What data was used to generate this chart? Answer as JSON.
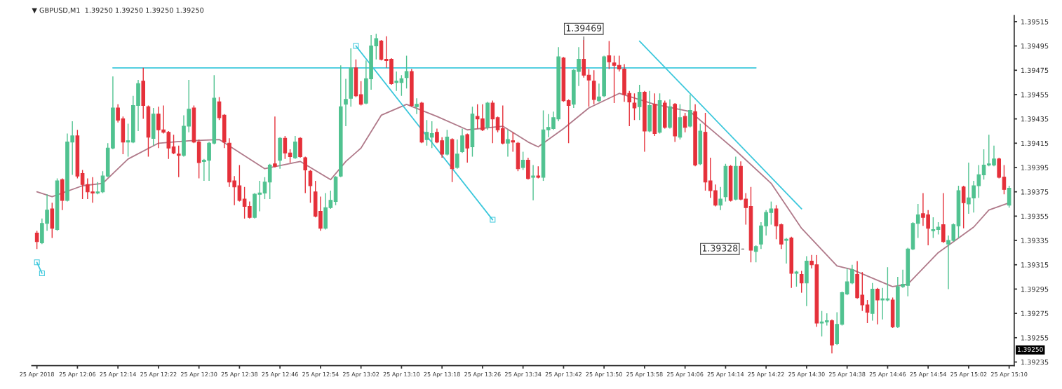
{
  "chart_data": {
    "type": "candlestick",
    "title": "▼ GBPUSD,M1  1.39250 1.39250 1.39250 1.39250",
    "x": [
      "2018-04-25T11:58",
      "2018-04-25T11:59",
      "2018-04-25T12:00",
      "2018-04-25T12:01",
      "2018-04-25T12:02",
      "2018-04-25T12:03",
      "2018-04-25T12:04",
      "2018-04-25T12:05",
      "2018-04-25T12:06",
      "2018-04-25T12:07",
      "2018-04-25T12:08",
      "2018-04-25T12:09",
      "2018-04-25T12:10",
      "2018-04-25T12:11",
      "2018-04-25T12:12",
      "2018-04-25T12:13",
      "2018-04-25T12:14",
      "2018-04-25T12:15",
      "2018-04-25T12:16",
      "2018-04-25T12:17",
      "2018-04-25T12:18",
      "2018-04-25T12:19",
      "2018-04-25T12:20",
      "2018-04-25T12:21",
      "2018-04-25T12:22",
      "2018-04-25T12:23",
      "2018-04-25T12:24",
      "2018-04-25T12:25",
      "2018-04-25T12:26",
      "2018-04-25T12:27",
      "2018-04-25T12:28",
      "2018-04-25T12:29",
      "2018-04-25T12:30",
      "2018-04-25T12:31",
      "2018-04-25T12:32",
      "2018-04-25T12:33",
      "2018-04-25T12:34",
      "2018-04-25T12:35",
      "2018-04-25T12:36",
      "2018-04-25T12:37",
      "2018-04-25T12:38",
      "2018-04-25T12:39",
      "2018-04-25T12:40",
      "2018-04-25T12:41",
      "2018-04-25T12:42",
      "2018-04-25T12:43",
      "2018-04-25T12:44",
      "2018-04-25T12:45",
      "2018-04-25T12:46",
      "2018-04-25T12:47",
      "2018-04-25T12:48",
      "2018-04-25T12:49",
      "2018-04-25T12:50",
      "2018-04-25T12:51",
      "2018-04-25T12:52",
      "2018-04-25T12:53",
      "2018-04-25T12:54",
      "2018-04-25T12:55",
      "2018-04-25T12:56",
      "2018-04-25T12:57",
      "2018-04-25T12:58",
      "2018-04-25T12:59",
      "2018-04-25T13:00",
      "2018-04-25T13:01",
      "2018-04-25T13:02",
      "2018-04-25T13:03",
      "2018-04-25T13:04",
      "2018-04-25T13:05",
      "2018-04-25T13:06",
      "2018-04-25T13:07",
      "2018-04-25T13:08",
      "2018-04-25T13:09",
      "2018-04-25T13:10",
      "2018-04-25T13:11",
      "2018-04-25T13:12",
      "2018-04-25T13:13",
      "2018-04-25T13:14",
      "2018-04-25T13:15",
      "2018-04-25T13:16",
      "2018-04-25T13:17",
      "2018-04-25T13:18",
      "2018-04-25T13:19",
      "2018-04-25T13:20",
      "2018-04-25T13:21",
      "2018-04-25T13:22",
      "2018-04-25T13:23",
      "2018-04-25T13:24",
      "2018-04-25T13:25",
      "2018-04-25T13:26",
      "2018-04-25T13:27",
      "2018-04-25T13:28",
      "2018-04-25T13:29",
      "2018-04-25T13:30",
      "2018-04-25T13:31",
      "2018-04-25T13:32",
      "2018-04-25T13:33",
      "2018-04-25T13:34",
      "2018-04-25T13:35",
      "2018-04-25T13:36",
      "2018-04-25T13:37",
      "2018-04-25T13:38",
      "2018-04-25T13:39",
      "2018-04-25T13:40",
      "2018-04-25T13:41",
      "2018-04-25T13:42",
      "2018-04-25T13:43",
      "2018-04-25T13:44",
      "2018-04-25T13:45",
      "2018-04-25T13:46",
      "2018-04-25T13:47",
      "2018-04-25T13:48",
      "2018-04-25T13:49",
      "2018-04-25T13:50",
      "2018-04-25T13:51",
      "2018-04-25T13:52",
      "2018-04-25T13:53",
      "2018-04-25T13:54",
      "2018-04-25T13:55",
      "2018-04-25T13:56",
      "2018-04-25T13:57",
      "2018-04-25T13:58",
      "2018-04-25T13:59",
      "2018-04-25T14:00",
      "2018-04-25T14:01",
      "2018-04-25T14:02",
      "2018-04-25T14:03",
      "2018-04-25T14:04",
      "2018-04-25T14:05",
      "2018-04-25T14:06",
      "2018-04-25T14:07",
      "2018-04-25T14:08",
      "2018-04-25T14:09",
      "2018-04-25T14:10",
      "2018-04-25T14:11",
      "2018-04-25T14:12",
      "2018-04-25T14:13",
      "2018-04-25T14:14",
      "2018-04-25T14:15",
      "2018-04-25T14:16",
      "2018-04-25T14:17",
      "2018-04-25T14:18",
      "2018-04-25T14:19",
      "2018-04-25T14:20",
      "2018-04-25T14:21",
      "2018-04-25T14:22",
      "2018-04-25T14:23",
      "2018-04-25T14:24",
      "2018-04-25T14:25",
      "2018-04-25T14:26",
      "2018-04-25T14:27",
      "2018-04-25T14:28",
      "2018-04-25T14:29",
      "2018-04-25T14:30",
      "2018-04-25T14:31",
      "2018-04-25T14:32",
      "2018-04-25T14:33",
      "2018-04-25T14:34",
      "2018-04-25T14:35",
      "2018-04-25T14:36",
      "2018-04-25T14:37",
      "2018-04-25T14:38",
      "2018-04-25T14:39",
      "2018-04-25T14:40",
      "2018-04-25T14:41",
      "2018-04-25T14:42",
      "2018-04-25T14:43",
      "2018-04-25T14:44",
      "2018-04-25T14:45",
      "2018-04-25T14:46",
      "2018-04-25T14:47",
      "2018-04-25T14:48",
      "2018-04-25T14:49",
      "2018-04-25T14:50",
      "2018-04-25T14:51",
      "2018-04-25T14:52",
      "2018-04-25T14:53",
      "2018-04-25T14:54",
      "2018-04-25T14:55",
      "2018-04-25T14:56",
      "2018-04-25T14:57",
      "2018-04-25T14:58",
      "2018-04-25T14:59",
      "2018-04-25T15:00",
      "2018-04-25T15:01",
      "2018-04-25T15:02",
      "2018-04-25T15:03",
      "2018-04-25T15:04",
      "2018-04-25T15:05",
      "2018-04-25T15:06",
      "2018-04-25T15:07",
      "2018-04-25T15:08",
      "2018-04-25T15:09",
      "2018-04-25T15:10"
    ],
    "ohlc": [
      [
        1.39341,
        1.39343,
        1.39328,
        1.39334
      ],
      [
        1.39333,
        1.39353,
        1.39332,
        1.39349
      ],
      [
        1.39349,
        1.39373,
        1.39343,
        1.3936
      ],
      [
        1.39361,
        1.39366,
        1.39337,
        1.39345
      ],
      [
        1.39344,
        1.39386,
        1.39343,
        1.39384
      ],
      [
        1.39385,
        1.39386,
        1.3936,
        1.39368
      ],
      [
        1.39368,
        1.39423,
        1.39367,
        1.39416
      ],
      [
        1.39416,
        1.39433,
        1.39389,
        1.39421
      ],
      [
        1.39421,
        1.39426,
        1.39386,
        1.39388
      ],
      [
        1.3939,
        1.39393,
        1.39369,
        1.39381
      ],
      [
        1.39381,
        1.39386,
        1.39369,
        1.39375
      ],
      [
        1.39375,
        1.39387,
        1.39366,
        1.39374
      ],
      [
        1.39374,
        1.39383,
        1.39373,
        1.39375
      ],
      [
        1.39375,
        1.39392,
        1.39374,
        1.39388
      ],
      [
        1.39388,
        1.39415,
        1.39387,
        1.39411
      ],
      [
        1.39411,
        1.3947,
        1.3941,
        1.39444
      ],
      [
        1.39444,
        1.39447,
        1.39432,
        1.39434
      ],
      [
        1.39435,
        1.39437,
        1.39406,
        1.39416
      ],
      [
        1.39416,
        1.39431,
        1.39404,
        1.39417
      ],
      [
        1.39416,
        1.39454,
        1.39415,
        1.39446
      ],
      [
        1.39446,
        1.39467,
        1.39425,
        1.39464
      ],
      [
        1.39466,
        1.39477,
        1.39435,
        1.39446
      ],
      [
        1.39445,
        1.39446,
        1.39404,
        1.3942
      ],
      [
        1.39419,
        1.39444,
        1.39413,
        1.39439
      ],
      [
        1.39439,
        1.39445,
        1.39411,
        1.39426
      ],
      [
        1.39426,
        1.39446,
        1.39423,
        1.39424
      ],
      [
        1.39424,
        1.39425,
        1.39402,
        1.39411
      ],
      [
        1.39412,
        1.39422,
        1.39406,
        1.39407
      ],
      [
        1.39406,
        1.39413,
        1.39387,
        1.39405
      ],
      [
        1.39405,
        1.39438,
        1.39404,
        1.39429
      ],
      [
        1.39429,
        1.39467,
        1.39424,
        1.39443
      ],
      [
        1.39444,
        1.39446,
        1.39415,
        1.39416
      ],
      [
        1.39416,
        1.39418,
        1.39386,
        1.39399
      ],
      [
        1.394,
        1.39402,
        1.39384,
        1.39401
      ],
      [
        1.39401,
        1.39416,
        1.39384,
        1.39415
      ],
      [
        1.39415,
        1.39471,
        1.39414,
        1.39452
      ],
      [
        1.39449,
        1.39453,
        1.39434,
        1.39436
      ],
      [
        1.39438,
        1.39439,
        1.39411,
        1.39416
      ],
      [
        1.39415,
        1.39419,
        1.39379,
        1.39383
      ],
      [
        1.39384,
        1.39388,
        1.39364,
        1.39379
      ],
      [
        1.3938,
        1.39397,
        1.39367,
        1.39368
      ],
      [
        1.39369,
        1.39379,
        1.39353,
        1.39363
      ],
      [
        1.39363,
        1.39367,
        1.39353,
        1.39354
      ],
      [
        1.39354,
        1.39374,
        1.39353,
        1.39373
      ],
      [
        1.39373,
        1.39384,
        1.39359,
        1.39374
      ],
      [
        1.39374,
        1.39387,
        1.39369,
        1.39383
      ],
      [
        1.39383,
        1.39398,
        1.39369,
        1.39397
      ],
      [
        1.39398,
        1.39437,
        1.39395,
        1.39396
      ],
      [
        1.39401,
        1.3942,
        1.39394,
        1.39419
      ],
      [
        1.39419,
        1.39421,
        1.39402,
        1.39407
      ],
      [
        1.39407,
        1.3941,
        1.39399,
        1.39404
      ],
      [
        1.39403,
        1.39421,
        1.39402,
        1.39416
      ],
      [
        1.39419,
        1.3942,
        1.39403,
        1.39404
      ],
      [
        1.39403,
        1.39404,
        1.39374,
        1.39393
      ],
      [
        1.39392,
        1.39393,
        1.39366,
        1.3938
      ],
      [
        1.39375,
        1.39384,
        1.39354,
        1.39355
      ],
      [
        1.39359,
        1.39371,
        1.39343,
        1.39345
      ],
      [
        1.39345,
        1.39374,
        1.39344,
        1.39362
      ],
      [
        1.39362,
        1.39376,
        1.39361,
        1.39368
      ],
      [
        1.39367,
        1.39388,
        1.39364,
        1.39387
      ],
      [
        1.39388,
        1.39479,
        1.39387,
        1.39445
      ],
      [
        1.39447,
        1.39468,
        1.39429,
        1.39451
      ],
      [
        1.39452,
        1.39493,
        1.39445,
        1.39477
      ],
      [
        1.39477,
        1.39484,
        1.39453,
        1.39454
      ],
      [
        1.39455,
        1.39466,
        1.39446,
        1.39447
      ],
      [
        1.39448,
        1.39483,
        1.39447,
        1.39468
      ],
      [
        1.39468,
        1.39504,
        1.39459,
        1.39495
      ],
      [
        1.39495,
        1.39505,
        1.39484,
        1.39501
      ],
      [
        1.39499,
        1.395,
        1.39483,
        1.39484
      ],
      [
        1.39484,
        1.39503,
        1.39477,
        1.39483
      ],
      [
        1.39484,
        1.39485,
        1.39463,
        1.39464
      ],
      [
        1.39465,
        1.39474,
        1.39458,
        1.39466
      ],
      [
        1.39465,
        1.39471,
        1.39454,
        1.39468
      ],
      [
        1.39469,
        1.39487,
        1.3946,
        1.39474
      ],
      [
        1.39474,
        1.39476,
        1.39445,
        1.39446
      ],
      [
        1.39445,
        1.39452,
        1.39439,
        1.39447
      ],
      [
        1.39448,
        1.39449,
        1.39415,
        1.39416
      ],
      [
        1.39418,
        1.39434,
        1.39413,
        1.39424
      ],
      [
        1.3942,
        1.39433,
        1.39411,
        1.39423
      ],
      [
        1.39424,
        1.39427,
        1.39415,
        1.39416
      ],
      [
        1.39417,
        1.3942,
        1.39403,
        1.39406
      ],
      [
        1.39406,
        1.39426,
        1.39405,
        1.3942
      ],
      [
        1.39418,
        1.39419,
        1.39383,
        1.39394
      ],
      [
        1.39395,
        1.39418,
        1.39394,
        1.39406
      ],
      [
        1.39408,
        1.39427,
        1.39407,
        1.39421
      ],
      [
        1.39422,
        1.39423,
        1.39399,
        1.39411
      ],
      [
        1.39412,
        1.39445,
        1.39404,
        1.39439
      ],
      [
        1.39437,
        1.39447,
        1.39427,
        1.39435
      ],
      [
        1.39435,
        1.39447,
        1.39425,
        1.39426
      ],
      [
        1.39428,
        1.39449,
        1.39426,
        1.39448
      ],
      [
        1.39448,
        1.3945,
        1.39415,
        1.39435
      ],
      [
        1.39436,
        1.39437,
        1.39424,
        1.39426
      ],
      [
        1.39427,
        1.39446,
        1.39414,
        1.39415
      ],
      [
        1.39415,
        1.39426,
        1.39404,
        1.39418
      ],
      [
        1.39417,
        1.39424,
        1.39408,
        1.39416
      ],
      [
        1.39415,
        1.39416,
        1.39392,
        1.39394
      ],
      [
        1.39395,
        1.39408,
        1.39393,
        1.39401
      ],
      [
        1.39401,
        1.39403,
        1.39385,
        1.39386
      ],
      [
        1.39387,
        1.39397,
        1.39368,
        1.39388
      ],
      [
        1.39388,
        1.39396,
        1.39386,
        1.39387
      ],
      [
        1.39387,
        1.39442,
        1.39384,
        1.39426
      ],
      [
        1.39426,
        1.39439,
        1.3942,
        1.39428
      ],
      [
        1.39427,
        1.39441,
        1.39426,
        1.39436
      ],
      [
        1.39435,
        1.39494,
        1.39433,
        1.39486
      ],
      [
        1.39485,
        1.39486,
        1.39449,
        1.3945
      ],
      [
        1.3945,
        1.39451,
        1.39415,
        1.39446
      ],
      [
        1.39447,
        1.39476,
        1.39444,
        1.39475
      ],
      [
        1.39474,
        1.39494,
        1.39462,
        1.39484
      ],
      [
        1.39484,
        1.395,
        1.39469,
        1.39471
      ],
      [
        1.39471,
        1.39476,
        1.39445,
        1.39467
      ],
      [
        1.39466,
        1.39475,
        1.39447,
        1.39451
      ],
      [
        1.3945,
        1.39464,
        1.39449,
        1.39453
      ],
      [
        1.39454,
        1.39487,
        1.39453,
        1.39486
      ],
      [
        1.39487,
        1.39499,
        1.39476,
        1.39482
      ],
      [
        1.39481,
        1.39487,
        1.39448,
        1.39479
      ],
      [
        1.39479,
        1.39487,
        1.39474,
        1.39476
      ],
      [
        1.39476,
        1.3948,
        1.39449,
        1.39455
      ],
      [
        1.39456,
        1.39458,
        1.39429,
        1.39449
      ],
      [
        1.39448,
        1.39456,
        1.39434,
        1.39444
      ],
      [
        1.39445,
        1.39463,
        1.39434,
        1.39457
      ],
      [
        1.39457,
        1.39458,
        1.39408,
        1.39425
      ],
      [
        1.39425,
        1.39458,
        1.39424,
        1.39446
      ],
      [
        1.39447,
        1.39456,
        1.39421,
        1.39423
      ],
      [
        1.39424,
        1.39456,
        1.39423,
        1.3945
      ],
      [
        1.39448,
        1.3945,
        1.39427,
        1.39428
      ],
      [
        1.39428,
        1.39451,
        1.39427,
        1.39445
      ],
      [
        1.39447,
        1.39448,
        1.39416,
        1.39421
      ],
      [
        1.3942,
        1.39447,
        1.39418,
        1.39436
      ],
      [
        1.39437,
        1.3944,
        1.39424,
        1.39428
      ],
      [
        1.39429,
        1.39455,
        1.39428,
        1.39442
      ],
      [
        1.39441,
        1.39447,
        1.39396,
        1.39397
      ],
      [
        1.39398,
        1.39431,
        1.39397,
        1.39425
      ],
      [
        1.39424,
        1.3944,
        1.39376,
        1.39383
      ],
      [
        1.39384,
        1.39403,
        1.3937,
        1.39376
      ],
      [
        1.39376,
        1.39381,
        1.39363,
        1.39364
      ],
      [
        1.39364,
        1.39379,
        1.3936,
        1.39369
      ],
      [
        1.39371,
        1.39398,
        1.39367,
        1.39396
      ],
      [
        1.39396,
        1.39397,
        1.39367,
        1.39368
      ],
      [
        1.39369,
        1.39404,
        1.39368,
        1.39396
      ],
      [
        1.39396,
        1.394,
        1.39368,
        1.39369
      ],
      [
        1.39369,
        1.39374,
        1.39348,
        1.39362
      ],
      [
        1.39363,
        1.39379,
        1.39317,
        1.39327
      ],
      [
        1.39326,
        1.39331,
        1.39317,
        1.3933
      ],
      [
        1.39332,
        1.3935,
        1.39328,
        1.39347
      ],
      [
        1.39347,
        1.3936,
        1.39339,
        1.39358
      ],
      [
        1.39358,
        1.39367,
        1.39348,
        1.39361
      ],
      [
        1.39361,
        1.39364,
        1.39336,
        1.39347
      ],
      [
        1.39348,
        1.39349,
        1.39328,
        1.39332
      ],
      [
        1.39335,
        1.39337,
        1.39316,
        1.39336
      ],
      [
        1.39337,
        1.39338,
        1.39296,
        1.39308
      ],
      [
        1.39308,
        1.3931,
        1.39297,
        1.39309
      ],
      [
        1.39307,
        1.3931,
        1.39292,
        1.393
      ],
      [
        1.393,
        1.39322,
        1.39281,
        1.39318
      ],
      [
        1.39318,
        1.39323,
        1.39312,
        1.39315
      ],
      [
        1.39315,
        1.39323,
        1.39264,
        1.39267
      ],
      [
        1.39267,
        1.39277,
        1.39256,
        1.39268
      ],
      [
        1.39268,
        1.39275,
        1.39265,
        1.39269
      ],
      [
        1.39269,
        1.3927,
        1.39242,
        1.39249
      ],
      [
        1.3925,
        1.39276,
        1.39249,
        1.39266
      ],
      [
        1.39266,
        1.39293,
        1.39265,
        1.39292
      ],
      [
        1.39291,
        1.39312,
        1.3929,
        1.39301
      ],
      [
        1.393,
        1.39315,
        1.39299,
        1.39311
      ],
      [
        1.39307,
        1.39318,
        1.39287,
        1.39288
      ],
      [
        1.3929,
        1.39309,
        1.39277,
        1.39282
      ],
      [
        1.39282,
        1.39286,
        1.39267,
        1.39276
      ],
      [
        1.39275,
        1.393,
        1.39269,
        1.39295
      ],
      [
        1.39295,
        1.39296,
        1.39266,
        1.39286
      ],
      [
        1.39286,
        1.39296,
        1.3927,
        1.39287
      ],
      [
        1.39286,
        1.39313,
        1.39285,
        1.39287
      ],
      [
        1.39286,
        1.39288,
        1.39263,
        1.39264
      ],
      [
        1.39264,
        1.39305,
        1.39263,
        1.39297
      ],
      [
        1.39297,
        1.39311,
        1.39296,
        1.39299
      ],
      [
        1.39298,
        1.39329,
        1.39289,
        1.39328
      ],
      [
        1.39328,
        1.3935,
        1.39327,
        1.39349
      ],
      [
        1.39349,
        1.39365,
        1.39337,
        1.39356
      ],
      [
        1.39357,
        1.39374,
        1.39347,
        1.39354
      ],
      [
        1.39356,
        1.3936,
        1.39331,
        1.39345
      ],
      [
        1.39343,
        1.39354,
        1.39337,
        1.39344
      ],
      [
        1.39344,
        1.3935,
        1.3934,
        1.39346
      ],
      [
        1.39348,
        1.39374,
        1.39333,
        1.39334
      ],
      [
        1.39332,
        1.39339,
        1.39295,
        1.39335
      ],
      [
        1.39335,
        1.39349,
        1.39334,
        1.39348
      ],
      [
        1.39347,
        1.3938,
        1.39337,
        1.39376
      ],
      [
        1.39379,
        1.3938,
        1.39345,
        1.39366
      ],
      [
        1.39365,
        1.39399,
        1.39357,
        1.3937
      ],
      [
        1.3937,
        1.39384,
        1.39358,
        1.3938
      ],
      [
        1.3938,
        1.39397,
        1.3937,
        1.39389
      ],
      [
        1.39389,
        1.3941,
        1.39385,
        1.39397
      ],
      [
        1.39397,
        1.39422,
        1.39396,
        1.39398
      ],
      [
        1.39397,
        1.39413,
        1.39396,
        1.39402
      ],
      [
        1.39402,
        1.39403,
        1.39386,
        1.39387
      ],
      [
        1.39387,
        1.39397,
        1.39373,
        1.39377
      ],
      [
        1.39364,
        1.3938,
        1.39362,
        1.39378
      ]
    ],
    "colors": [
      "#e5303a",
      "#50c290",
      "#50c290",
      "#e5303a",
      "#50c290",
      "#e5303a",
      "#50c290",
      "#50c290",
      "#e5303a",
      "#e5303a",
      "#e5303a",
      "#e5303a",
      "#50c290",
      "#50c290",
      "#50c290",
      "#50c290",
      "#e5303a",
      "#e5303a",
      "#50c290",
      "#50c290",
      "#50c290",
      "#e5303a",
      "#e5303a",
      "#50c290",
      "#e5303a",
      "#e5303a",
      "#e5303a",
      "#e5303a",
      "#e5303a",
      "#50c290",
      "#50c290",
      "#e5303a",
      "#e5303a",
      "#50c290",
      "#50c290",
      "#50c290",
      "#e5303a",
      "#e5303a",
      "#e5303a",
      "#e5303a",
      "#e5303a",
      "#e5303a",
      "#e5303a",
      "#50c290",
      "#50c290",
      "#50c290",
      "#50c290",
      "#e5303a",
      "#50c290",
      "#e5303a",
      "#e5303a",
      "#50c290",
      "#e5303a",
      "#e5303a",
      "#e5303a",
      "#e5303a",
      "#e5303a",
      "#50c290",
      "#50c290",
      "#50c290",
      "#50c290",
      "#50c290",
      "#50c290",
      "#e5303a",
      "#e5303a",
      "#50c290",
      "#50c290",
      "#50c290",
      "#e5303a",
      "#e5303a",
      "#e5303a",
      "#50c290",
      "#50c290",
      "#50c290",
      "#e5303a",
      "#50c290",
      "#e5303a",
      "#50c290",
      "#50c290",
      "#e5303a",
      "#e5303a",
      "#50c290",
      "#e5303a",
      "#50c290",
      "#50c290",
      "#e5303a",
      "#50c290",
      "#e5303a",
      "#e5303a",
      "#50c290",
      "#e5303a",
      "#e5303a",
      "#e5303a",
      "#50c290",
      "#e5303a",
      "#e5303a",
      "#50c290",
      "#e5303a",
      "#50c290",
      "#e5303a",
      "#50c290",
      "#50c290",
      "#50c290",
      "#50c290",
      "#e5303a",
      "#e5303a",
      "#50c290",
      "#50c290",
      "#e5303a",
      "#e5303a",
      "#e5303a",
      "#50c290",
      "#50c290",
      "#e5303a",
      "#e5303a",
      "#e5303a",
      "#e5303a",
      "#e5303a",
      "#e5303a",
      "#50c290",
      "#e5303a",
      "#50c290",
      "#e5303a",
      "#50c290",
      "#e5303a",
      "#50c290",
      "#e5303a",
      "#50c290",
      "#e5303a",
      "#50c290",
      "#e5303a",
      "#50c290",
      "#e5303a",
      "#e5303a",
      "#e5303a",
      "#50c290",
      "#50c290",
      "#e5303a",
      "#50c290",
      "#e5303a",
      "#e5303a",
      "#e5303a",
      "#50c290",
      "#50c290",
      "#50c290",
      "#50c290",
      "#e5303a",
      "#e5303a",
      "#50c290",
      "#e5303a",
      "#50c290",
      "#e5303a",
      "#50c290",
      "#e5303a",
      "#e5303a",
      "#50c290",
      "#50c290",
      "#e5303a",
      "#50c290",
      "#50c290",
      "#50c290",
      "#50c290",
      "#e5303a",
      "#e5303a",
      "#e5303a",
      "#50c290",
      "#e5303a",
      "#50c290",
      "#50c290",
      "#e5303a",
      "#50c290",
      "#50c290",
      "#50c290",
      "#50c290",
      "#50c290",
      "#e5303a",
      "#e5303a",
      "#50c290",
      "#50c290",
      "#e5303a",
      "#50c290",
      "#50c290",
      "#50c290",
      "#e5303a",
      "#50c290",
      "#50c290",
      "#50c290",
      "#50c290",
      "#50c290",
      "#50c290",
      "#e5303a",
      "#e5303a",
      "#50c290"
    ],
    "series": [
      {
        "type": "line",
        "color": "#b07a8a",
        "marker": "none",
        "line_style": "solid",
        "x": [
          "2018-04-25T11:58",
          "2018-04-25T12:01",
          "2018-04-25T12:07",
          "2018-04-25T12:11",
          "2018-04-25T12:16",
          "2018-04-25T12:22",
          "2018-04-25T12:28",
          "2018-04-25T12:34",
          "2018-04-25T12:43",
          "2018-04-25T12:50",
          "2018-04-25T12:56",
          "2018-04-25T12:59",
          "2018-04-25T13:02",
          "2018-04-25T13:06",
          "2018-04-25T13:11",
          "2018-04-25T13:17",
          "2018-04-25T13:23",
          "2018-04-25T13:30",
          "2018-04-25T13:35",
          "2018-04-25T13:37",
          "2018-04-25T13:42",
          "2018-04-25T13:47",
          "2018-04-25T13:53",
          "2018-04-25T14:00",
          "2018-04-25T14:07",
          "2018-04-25T14:16",
          "2018-04-25T14:23",
          "2018-04-25T14:29",
          "2018-04-25T14:36",
          "2018-04-25T14:39",
          "2018-04-25T14:47",
          "2018-04-25T14:50",
          "2018-04-25T14:56",
          "2018-04-25T15:03",
          "2018-04-25T15:06",
          "2018-04-25T15:10"
        ],
        "values": [
          1.39375,
          1.39371,
          1.3938,
          1.39382,
          1.39402,
          1.39415,
          1.39417,
          1.39418,
          1.39394,
          1.394,
          1.39385,
          1.394,
          1.39411,
          1.39438,
          1.39447,
          1.39437,
          1.39426,
          1.39429,
          1.39416,
          1.39412,
          1.39427,
          1.39444,
          1.39456,
          1.39447,
          1.39441,
          1.39409,
          1.39382,
          1.39345,
          1.39314,
          1.39311,
          1.39297,
          1.39299,
          1.39325,
          1.39346,
          1.3936,
          1.39366
        ]
      },
      {
        "type": "line",
        "color": "#3cc8dc",
        "marker": "none",
        "line_style": "solid",
        "x": [
          "2018-04-25T12:13",
          "2018-04-25T14:20"
        ],
        "values": [
          1.39477,
          1.39477
        ]
      },
      {
        "type": "line",
        "color": "#3cc8dc",
        "marker": "square",
        "line_style": "solid",
        "x": [
          "2018-04-25T11:58",
          "2018-04-25T11:59"
        ],
        "values": [
          1.39317,
          1.39308
        ]
      },
      {
        "type": "line",
        "color": "#3cc8dc",
        "marker": "square",
        "line_style": "solid",
        "x": [
          "2018-04-25T13:01",
          "2018-04-25T13:28"
        ],
        "values": [
          1.39495,
          1.39352
        ]
      },
      {
        "type": "line",
        "color": "#3cc8dc",
        "marker": "none",
        "line_style": "solid",
        "x": [
          "2018-04-25T13:57",
          "2018-04-25T14:29"
        ],
        "values": [
          1.39499,
          1.39361
        ]
      }
    ],
    "annotations": [
      {
        "text": "1.39469",
        "x": "2018-04-25T13:46",
        "y": 1.39469
      },
      {
        "text": "1.39328",
        "x": "2018-04-25T14:18",
        "y": 1.39328
      },
      "1.39250"
    ],
    "xlim": [
      "2018-04-25T11:57",
      "2018-04-25T15:11"
    ],
    "xticks": [
      {
        "value": "2018-04-25T11:58",
        "label": "25 Apr 2018"
      },
      {
        "value": "2018-04-25T12:06",
        "label": "25 Apr 12:06"
      },
      {
        "value": "2018-04-25T12:14",
        "label": "25 Apr 12:14"
      },
      {
        "value": "2018-04-25T12:22",
        "label": "25 Apr 12:22"
      },
      {
        "value": "2018-04-25T12:30",
        "label": "25 Apr 12:30"
      },
      {
        "value": "2018-04-25T12:38",
        "label": "25 Apr 12:38"
      },
      {
        "value": "2018-04-25T12:46",
        "label": "25 Apr 12:46"
      },
      {
        "value": "2018-04-25T12:54",
        "label": "25 Apr 12:54"
      },
      {
        "value": "2018-04-25T13:02",
        "label": "25 Apr 13:02"
      },
      {
        "value": "2018-04-25T13:10",
        "label": "25 Apr 13:10"
      },
      {
        "value": "2018-04-25T13:18",
        "label": "25 Apr 13:18"
      },
      {
        "value": "2018-04-25T13:26",
        "label": "25 Apr 13:26"
      },
      {
        "value": "2018-04-25T13:34",
        "label": "25 Apr 13:34"
      },
      {
        "value": "2018-04-25T13:42",
        "label": "25 Apr 13:42"
      },
      {
        "value": "2018-04-25T13:50",
        "label": "25 Apr 13:50"
      },
      {
        "value": "2018-04-25T13:58",
        "label": "25 Apr 13:58"
      },
      {
        "value": "2018-04-25T14:06",
        "label": "25 Apr 14:06"
      },
      {
        "value": "2018-04-25T14:14",
        "label": "25 Apr 14:14"
      },
      {
        "value": "2018-04-25T14:22",
        "label": "25 Apr 14:22"
      },
      {
        "value": "2018-04-25T14:30",
        "label": "25 Apr 14:30"
      },
      {
        "value": "2018-04-25T14:38",
        "label": "25 Apr 14:38"
      },
      {
        "value": "2018-04-25T14:46",
        "label": "25 Apr 14:46"
      },
      {
        "value": "2018-04-25T14:54",
        "label": "25 Apr 14:54"
      },
      {
        "value": "2018-04-25T15:02",
        "label": "25 Apr 15:02"
      },
      {
        "value": "2018-04-25T15:10",
        "label": "25 Apr 15:10"
      }
    ],
    "ylim": [
      1.39232,
      1.3952
    ],
    "yticks": [
      1.39515,
      1.39495,
      1.39475,
      1.39455,
      1.39435,
      1.39415,
      1.39395,
      1.39375,
      1.39355,
      1.39335,
      1.39315,
      1.39295,
      1.39275,
      1.39255,
      1.39235
    ]
  }
}
